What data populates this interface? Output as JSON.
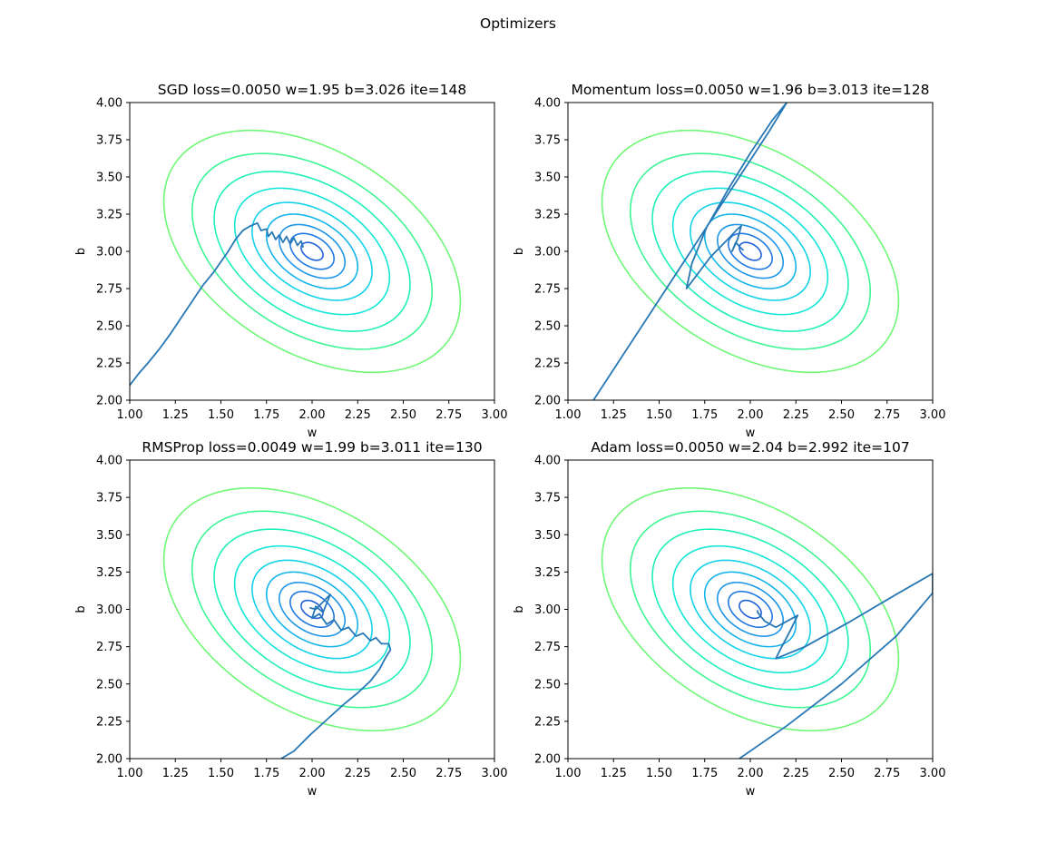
{
  "figure": {
    "title": "Optimizers"
  },
  "chart_data": [
    {
      "type": "contour",
      "title": "SGD loss=0.0050 w=1.95 b=3.026 ite=148",
      "xlabel": "w",
      "ylabel": "b",
      "xlim": [
        1.0,
        3.0
      ],
      "ylim": [
        2.0,
        4.0
      ],
      "xticks": [
        "1.00",
        "1.25",
        "1.50",
        "1.75",
        "2.00",
        "2.25",
        "2.50",
        "2.75",
        "3.00"
      ],
      "yticks": [
        "2.00",
        "2.25",
        "2.50",
        "2.75",
        "3.00",
        "3.25",
        "3.50",
        "3.75",
        "4.00"
      ],
      "grid": false,
      "trajectory": {
        "color": "#2878b5",
        "points": [
          [
            1.0,
            2.1
          ],
          [
            1.05,
            2.18
          ],
          [
            1.1,
            2.25
          ],
          [
            1.16,
            2.34
          ],
          [
            1.22,
            2.44
          ],
          [
            1.28,
            2.55
          ],
          [
            1.34,
            2.66
          ],
          [
            1.4,
            2.77
          ],
          [
            1.46,
            2.86
          ],
          [
            1.5,
            2.93
          ],
          [
            1.54,
            3.0
          ],
          [
            1.58,
            3.08
          ],
          [
            1.62,
            3.14
          ],
          [
            1.66,
            3.17
          ],
          [
            1.7,
            3.19
          ],
          [
            1.72,
            3.14
          ],
          [
            1.75,
            3.15
          ],
          [
            1.76,
            3.1
          ],
          [
            1.78,
            3.13
          ],
          [
            1.8,
            3.08
          ],
          [
            1.82,
            3.11
          ],
          [
            1.84,
            3.06
          ],
          [
            1.86,
            3.1
          ],
          [
            1.88,
            3.05
          ],
          [
            1.9,
            3.09
          ],
          [
            1.92,
            3.04
          ],
          [
            1.94,
            3.07
          ],
          [
            1.95,
            3.03
          ]
        ]
      }
    },
    {
      "type": "contour",
      "title": "Momentum loss=0.0050 w=1.96 b=3.013 ite=128",
      "xlabel": "w",
      "ylabel": "b",
      "xlim": [
        1.0,
        3.0
      ],
      "ylim": [
        2.0,
        4.0
      ],
      "xticks": [
        "1.00",
        "1.25",
        "1.50",
        "1.75",
        "2.00",
        "2.25",
        "2.50",
        "2.75",
        "3.00"
      ],
      "yticks": [
        "2.00",
        "2.25",
        "2.50",
        "2.75",
        "3.00",
        "3.25",
        "3.50",
        "3.75",
        "4.00"
      ],
      "grid": false,
      "trajectory": {
        "color": "#2878b5",
        "points": [
          [
            1.14,
            2.0
          ],
          [
            1.3,
            2.3
          ],
          [
            1.46,
            2.6
          ],
          [
            1.62,
            2.9
          ],
          [
            1.78,
            3.2
          ],
          [
            1.94,
            3.5
          ],
          [
            2.1,
            3.8
          ],
          [
            2.2,
            4.0
          ],
          [
            2.12,
            3.88
          ],
          [
            2.0,
            3.66
          ],
          [
            1.88,
            3.42
          ],
          [
            1.76,
            3.16
          ],
          [
            1.68,
            2.92
          ],
          [
            1.65,
            2.75
          ],
          [
            1.7,
            2.83
          ],
          [
            1.78,
            2.96
          ],
          [
            1.86,
            3.06
          ],
          [
            1.93,
            3.15
          ],
          [
            1.95,
            3.17
          ],
          [
            1.93,
            3.08
          ],
          [
            1.9,
            3.0
          ],
          [
            1.92,
            3.06
          ],
          [
            1.95,
            3.02
          ],
          [
            1.96,
            3.01
          ]
        ]
      }
    },
    {
      "type": "contour",
      "title": "RMSProp loss=0.0049 w=1.99 b=3.011 ite=130",
      "xlabel": "w",
      "ylabel": "b",
      "xlim": [
        1.0,
        3.0
      ],
      "ylim": [
        2.0,
        4.0
      ],
      "xticks": [
        "1.00",
        "1.25",
        "1.50",
        "1.75",
        "2.00",
        "2.25",
        "2.50",
        "2.75",
        "3.00"
      ],
      "yticks": [
        "2.00",
        "2.25",
        "2.50",
        "2.75",
        "3.00",
        "3.25",
        "3.50",
        "3.75",
        "4.00"
      ],
      "grid": false,
      "trajectory": {
        "color": "#2878b5",
        "points": [
          [
            1.83,
            2.0
          ],
          [
            1.9,
            2.05
          ],
          [
            1.99,
            2.16
          ],
          [
            2.08,
            2.26
          ],
          [
            2.17,
            2.36
          ],
          [
            2.25,
            2.44
          ],
          [
            2.32,
            2.52
          ],
          [
            2.37,
            2.6
          ],
          [
            2.4,
            2.67
          ],
          [
            2.43,
            2.73
          ],
          [
            2.42,
            2.77
          ],
          [
            2.38,
            2.77
          ],
          [
            2.35,
            2.81
          ],
          [
            2.32,
            2.79
          ],
          [
            2.28,
            2.84
          ],
          [
            2.24,
            2.82
          ],
          [
            2.2,
            2.88
          ],
          [
            2.16,
            2.86
          ],
          [
            2.12,
            2.93
          ],
          [
            2.08,
            2.9
          ],
          [
            2.04,
            2.97
          ],
          [
            2.0,
            2.94
          ],
          [
            2.02,
            3.02
          ],
          [
            2.06,
            2.98
          ],
          [
            2.1,
            3.1
          ],
          [
            2.02,
            3.0
          ],
          [
            1.99,
            3.01
          ]
        ]
      }
    },
    {
      "type": "contour",
      "title": "Adam loss=0.0050 w=2.04 b=2.992 ite=107",
      "xlabel": "w",
      "ylabel": "b",
      "xlim": [
        1.0,
        3.0
      ],
      "ylim": [
        2.0,
        4.0
      ],
      "xticks": [
        "1.00",
        "1.25",
        "1.50",
        "1.75",
        "2.00",
        "2.25",
        "2.50",
        "2.75",
        "3.00"
      ],
      "yticks": [
        "2.00",
        "2.25",
        "2.50",
        "2.75",
        "3.00",
        "3.25",
        "3.50",
        "3.75",
        "4.00"
      ],
      "grid": false,
      "trajectory": {
        "color": "#2878b5",
        "points": [
          [
            1.94,
            2.0
          ],
          [
            2.2,
            2.22
          ],
          [
            2.5,
            2.5
          ],
          [
            2.8,
            2.82
          ],
          [
            3.0,
            3.11
          ],
          [
            3.0,
            3.24
          ],
          [
            2.8,
            3.1
          ],
          [
            2.55,
            2.92
          ],
          [
            2.3,
            2.75
          ],
          [
            2.14,
            2.67
          ],
          [
            2.16,
            2.72
          ],
          [
            2.22,
            2.86
          ],
          [
            2.26,
            2.96
          ],
          [
            2.2,
            2.92
          ],
          [
            2.14,
            2.88
          ],
          [
            2.08,
            2.92
          ],
          [
            2.04,
            2.98
          ],
          [
            2.04,
            2.99
          ]
        ]
      }
    }
  ],
  "contours": {
    "center": [
      2.0,
      3.0
    ],
    "quadratic": {
      "a": 1.0,
      "b": 0.82,
      "c": 1.0
    },
    "levels": [
      0.003,
      0.012,
      0.027,
      0.052,
      0.09,
      0.15,
      0.24,
      0.36,
      0.55
    ],
    "colors": [
      "#1f60d8",
      "#1f78e0",
      "#1e95e6",
      "#14b4ea",
      "#12d2ea",
      "#13e6d8",
      "#1ff0b8",
      "#3ef594",
      "#6ff877"
    ],
    "scale": 1.0
  }
}
